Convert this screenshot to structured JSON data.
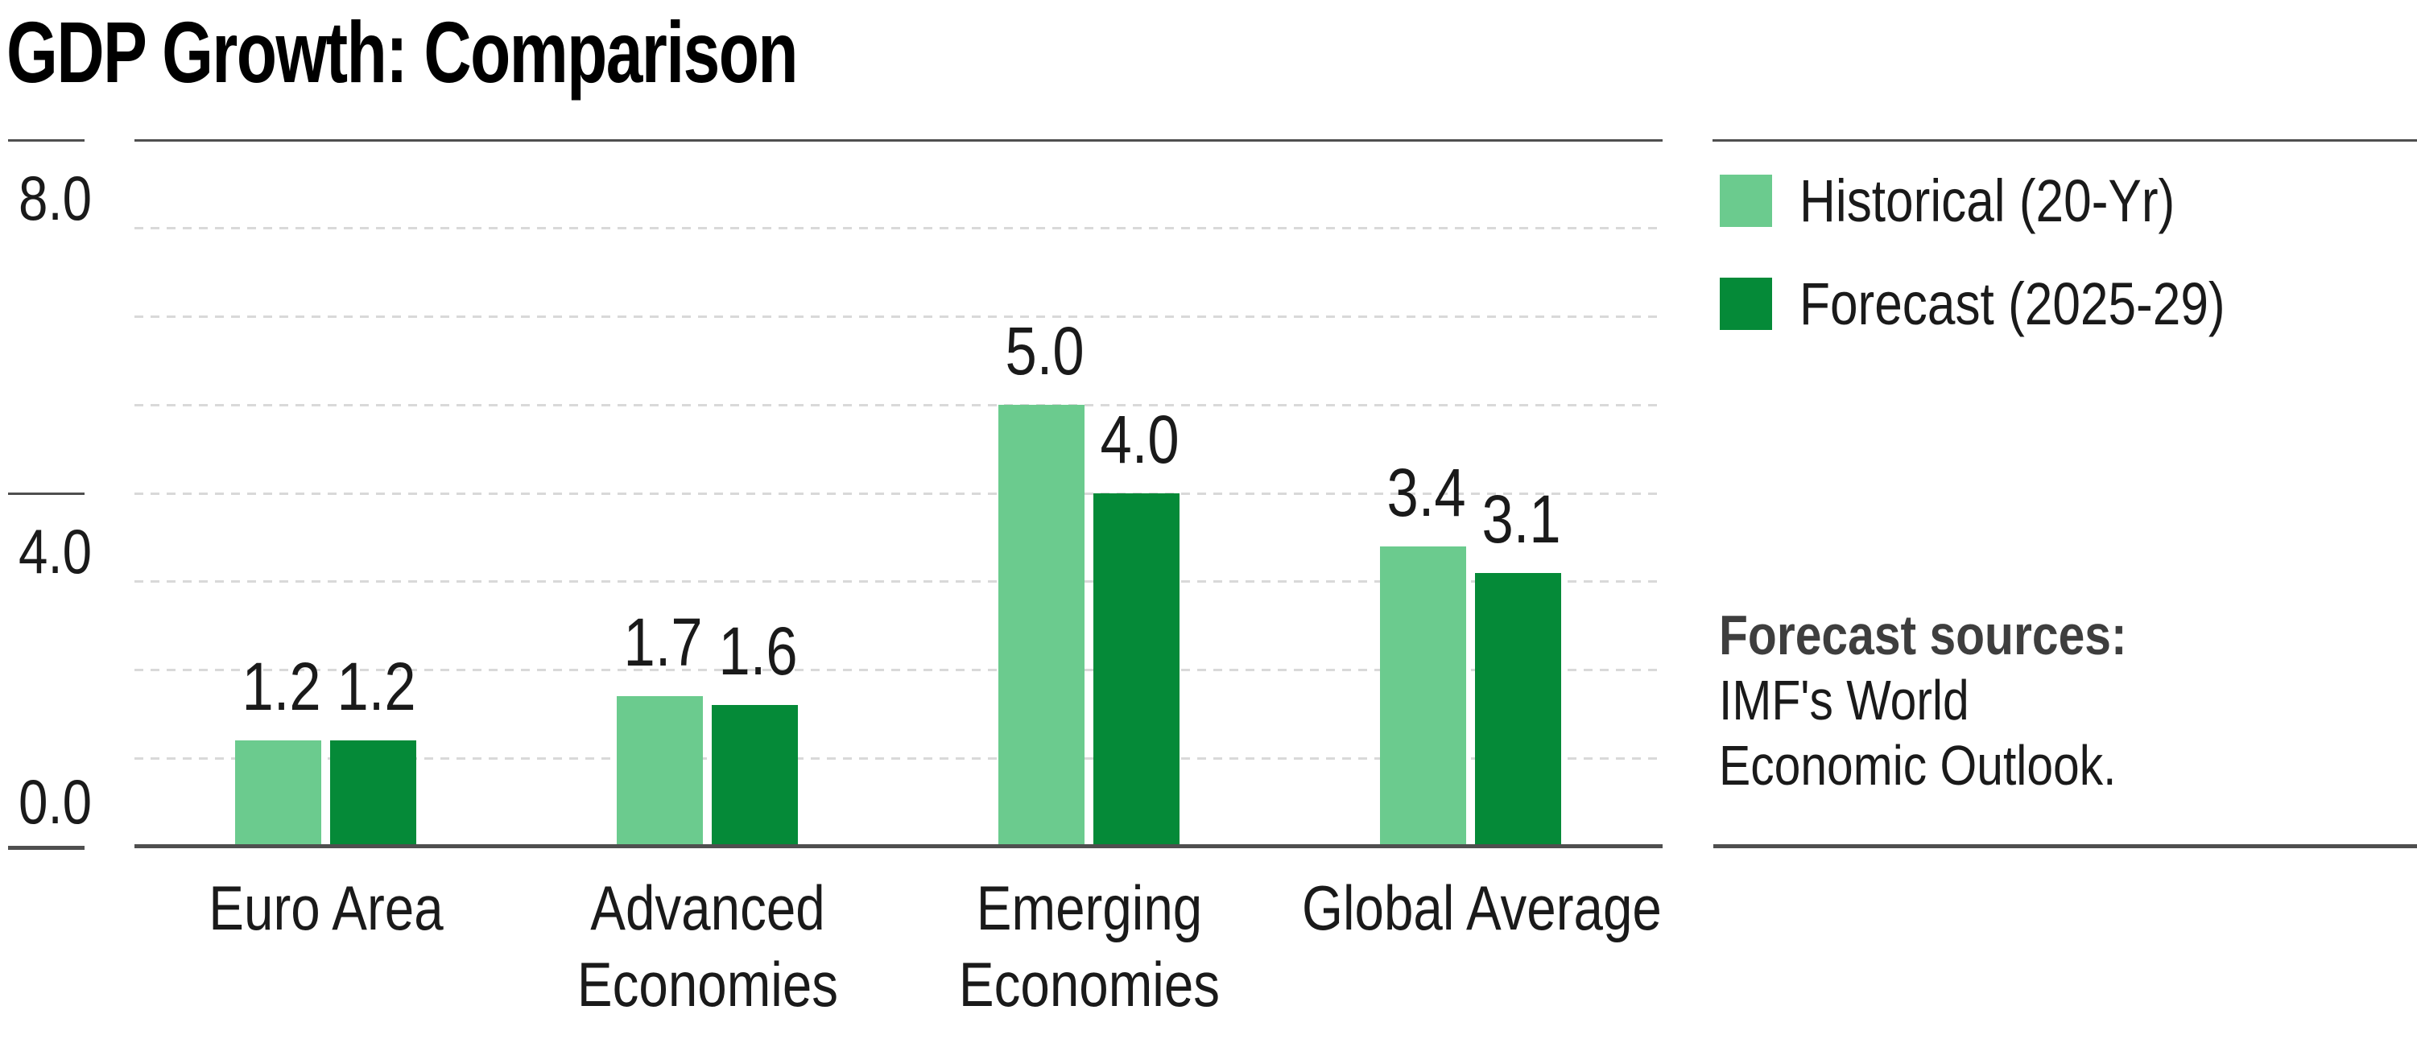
{
  "title": "GDP Growth: Comparison",
  "chart_data": {
    "type": "bar",
    "title": "GDP Growth: Comparison",
    "categories": [
      "Euro Area",
      "Advanced Economies",
      "Emerging Economies",
      "Global Average"
    ],
    "category_label_lines": [
      [
        "Euro Area"
      ],
      [
        "Advanced",
        "Economies"
      ],
      [
        "Emerging",
        "Economies"
      ],
      [
        "Global Average"
      ]
    ],
    "series": [
      {
        "name": "Historical (20-Yr)",
        "color": "#6bcb8e",
        "values": [
          1.2,
          1.7,
          5.0,
          3.4
        ],
        "value_labels": [
          "1.2",
          "1.7",
          "5.0",
          "3.4"
        ]
      },
      {
        "name": "Forecast (2025-29)",
        "color": "#058a38",
        "values": [
          1.2,
          1.6,
          4.0,
          3.1
        ],
        "value_labels": [
          "1.2",
          "1.6",
          "4.0",
          "3.1"
        ]
      }
    ],
    "ylim": [
      0,
      8
    ],
    "yticks": [
      {
        "value": 8,
        "label": "8.0",
        "label_side": "below"
      },
      {
        "value": 4,
        "label": "4.0",
        "label_side": "below"
      },
      {
        "value": 0,
        "label": "0.0",
        "label_side": "above"
      }
    ],
    "gridline_values": [
      1,
      2,
      3,
      4,
      5,
      6,
      7
    ],
    "grid_style": "dashed",
    "legend_position": "right",
    "xlabel": "",
    "ylabel": ""
  },
  "legend": {
    "items": [
      {
        "label": "Historical (20-Yr)",
        "swatch_color": "#6bcb8e"
      },
      {
        "label": "Forecast (2025-29)",
        "swatch_color": "#058a38"
      }
    ]
  },
  "note": {
    "header": "Forecast sources:",
    "lines": [
      "IMF's World",
      "Economic Outlook."
    ]
  },
  "colors": {
    "historical": "#6bcb8e",
    "forecast": "#058a38",
    "axis_rule": "#4f4f4f",
    "gridline": "#d9d9d9",
    "text": "#1a1a1a",
    "note_header": "#3e3e3e",
    "background": "#ffffff"
  }
}
